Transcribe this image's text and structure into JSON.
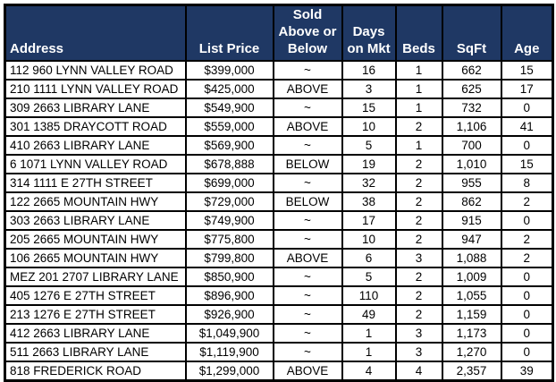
{
  "colors": {
    "header_bg": "#1f3864",
    "header_text": "#ffffff",
    "border": "#000000",
    "row_text": "#000000"
  },
  "table": {
    "columns": [
      {
        "key": "address",
        "label": "Address"
      },
      {
        "key": "list_price",
        "label": "List Price"
      },
      {
        "key": "sold_above_or_below",
        "label": "Sold\nAbove or\nBelow"
      },
      {
        "key": "days_on_mkt",
        "label": "Days\non Mkt"
      },
      {
        "key": "beds",
        "label": "Beds"
      },
      {
        "key": "sqft",
        "label": "SqFt"
      },
      {
        "key": "age",
        "label": "Age"
      }
    ],
    "rows": [
      [
        "112 960 LYNN VALLEY ROAD",
        "$399,000",
        "~",
        "16",
        "1",
        "662",
        "15"
      ],
      [
        "210 1111 LYNN VALLEY ROAD",
        "$425,000",
        "ABOVE",
        "3",
        "1",
        "625",
        "17"
      ],
      [
        "309 2663 LIBRARY LANE",
        "$549,900",
        "~",
        "15",
        "1",
        "732",
        "0"
      ],
      [
        "301 1385 DRAYCOTT ROAD",
        "$559,000",
        "ABOVE",
        "10",
        "2",
        "1,106",
        "41"
      ],
      [
        "410 2663 LIBRARY LANE",
        "$569,900",
        "~",
        "5",
        "1",
        "700",
        "0"
      ],
      [
        "6 1071 LYNN VALLEY ROAD",
        "$678,888",
        "BELOW",
        "19",
        "2",
        "1,010",
        "15"
      ],
      [
        "314 1111 E 27TH STREET",
        "$699,000",
        "~",
        "32",
        "2",
        "955",
        "8"
      ],
      [
        "122 2665 MOUNTAIN HWY",
        "$729,000",
        "BELOW",
        "38",
        "2",
        "862",
        "2"
      ],
      [
        "303 2663 LIBRARY LANE",
        "$749,900",
        "~",
        "17",
        "2",
        "915",
        "0"
      ],
      [
        "205 2665 MOUNTAIN HWY",
        "$775,800",
        "~",
        "10",
        "2",
        "947",
        "2"
      ],
      [
        "106 2665 MOUNTAIN HWY",
        "$799,800",
        "ABOVE",
        "6",
        "3",
        "1,088",
        "2"
      ],
      [
        "MEZ 201 2707 LIBRARY LANE",
        "$850,900",
        "~",
        "5",
        "2",
        "1,009",
        "0"
      ],
      [
        "405 1276 E 27TH STREET",
        "$896,900",
        "~",
        "110",
        "2",
        "1,055",
        "0"
      ],
      [
        "213 1276 E 27TH STREET",
        "$926,900",
        "~",
        "49",
        "2",
        "1,159",
        "0"
      ],
      [
        "412 2663 LIBRARY LANE",
        "$1,049,900",
        "~",
        "1",
        "3",
        "1,173",
        "0"
      ],
      [
        "511 2663 LIBRARY LANE",
        "$1,119,900",
        "~",
        "1",
        "3",
        "1,270",
        "0"
      ],
      [
        "818 FREDERICK ROAD",
        "$1,299,000",
        "ABOVE",
        "4",
        "4",
        "2,357",
        "39"
      ]
    ]
  }
}
